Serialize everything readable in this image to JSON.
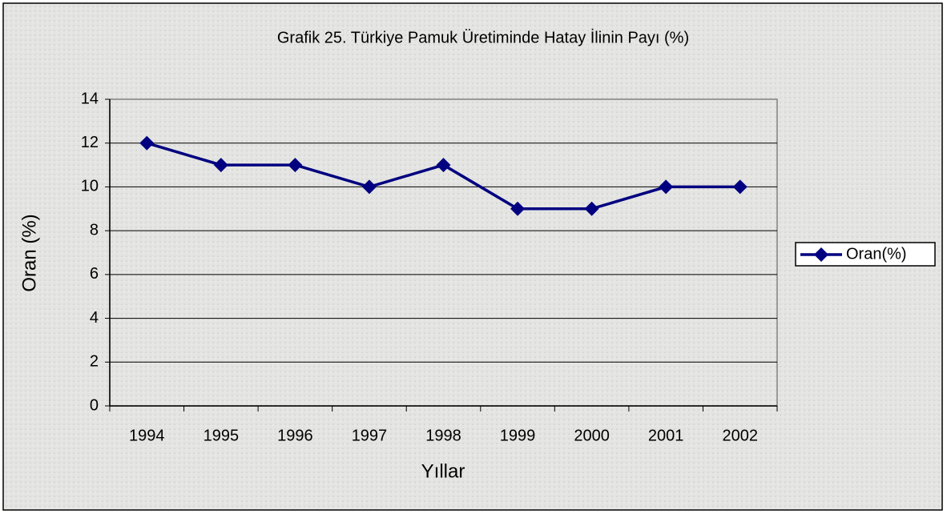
{
  "chart_data": {
    "type": "line",
    "title": "Grafik 25. Türkiye Pamuk Üretiminde Hatay İlinin Payı (%)",
    "x_label": "Yıllar",
    "y_label": "Oran (%)",
    "categories": [
      "1994",
      "1995",
      "1996",
      "1997",
      "1998",
      "1999",
      "2000",
      "2001",
      "2002"
    ],
    "series": [
      {
        "name": "Oran(%)",
        "color": "#000080",
        "values": [
          12,
          11,
          11,
          10,
          11,
          9,
          9,
          10,
          10
        ]
      }
    ],
    "ylim": [
      0,
      14
    ],
    "yticks": [
      0,
      2,
      4,
      6,
      8,
      10,
      12,
      14
    ],
    "grid": true,
    "legend": "right"
  }
}
